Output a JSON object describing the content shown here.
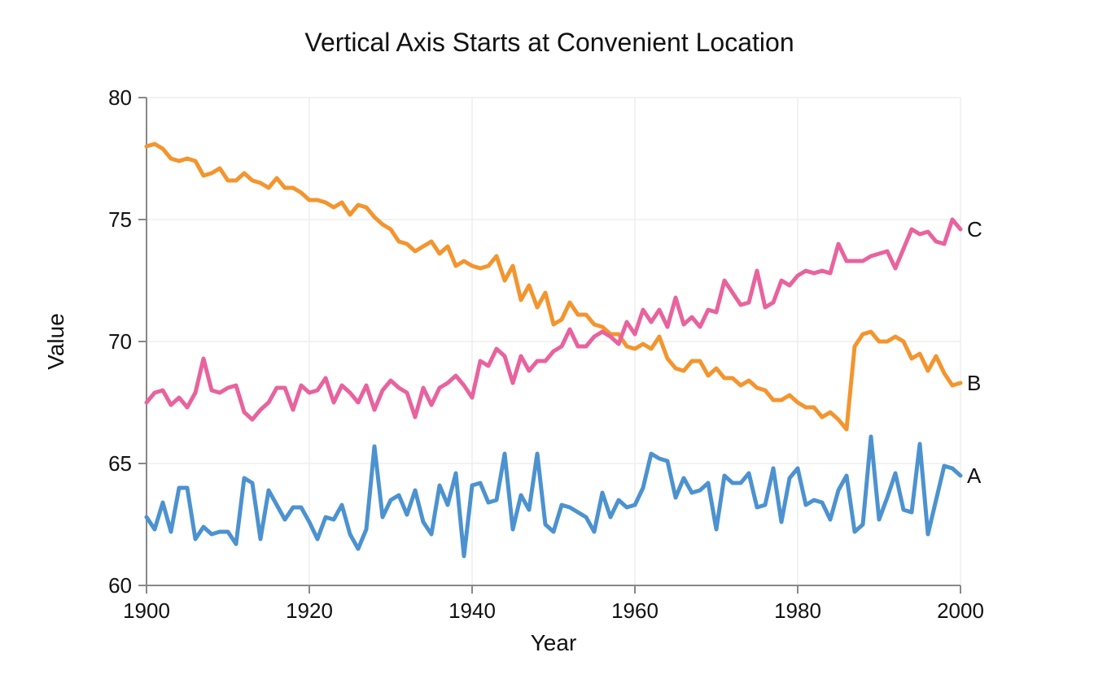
{
  "chart_data": {
    "type": "line",
    "title": "Vertical Axis Starts at Convenient Location",
    "xlabel": "Year",
    "ylabel": "Value",
    "xlim": [
      1900,
      2000
    ],
    "ylim": [
      60,
      80
    ],
    "x_ticks": [
      "1900",
      "1920",
      "1940",
      "1960",
      "1980",
      "2000"
    ],
    "y_ticks": [
      "60",
      "65",
      "70",
      "75",
      "80"
    ],
    "grid": true,
    "x": [
      1900,
      1901,
      1902,
      1903,
      1904,
      1905,
      1906,
      1907,
      1908,
      1909,
      1910,
      1911,
      1912,
      1913,
      1914,
      1915,
      1916,
      1917,
      1918,
      1919,
      1920,
      1921,
      1922,
      1923,
      1924,
      1925,
      1926,
      1927,
      1928,
      1929,
      1930,
      1931,
      1932,
      1933,
      1934,
      1935,
      1936,
      1937,
      1938,
      1939,
      1940,
      1941,
      1942,
      1943,
      1944,
      1945,
      1946,
      1947,
      1948,
      1949,
      1950,
      1951,
      1952,
      1953,
      1954,
      1955,
      1956,
      1957,
      1958,
      1959,
      1960,
      1961,
      1962,
      1963,
      1964,
      1965,
      1966,
      1967,
      1968,
      1969,
      1970,
      1971,
      1972,
      1973,
      1974,
      1975,
      1976,
      1977,
      1978,
      1979,
      1980,
      1981,
      1982,
      1983,
      1984,
      1985,
      1986,
      1987,
      1988,
      1989,
      1990,
      1991,
      1992,
      1993,
      1994,
      1995,
      1996,
      1997,
      1998,
      1999,
      2000
    ],
    "series": [
      {
        "name": "A",
        "color": "#4c92d0",
        "values": [
          62.8,
          62.3,
          63.4,
          62.2,
          64.0,
          64.0,
          61.9,
          62.4,
          62.1,
          62.2,
          62.2,
          61.7,
          64.4,
          64.2,
          61.9,
          63.9,
          63.3,
          62.7,
          63.2,
          63.2,
          62.6,
          61.9,
          62.8,
          62.7,
          63.3,
          62.1,
          61.5,
          62.3,
          65.7,
          62.8,
          63.5,
          63.7,
          62.9,
          63.9,
          62.6,
          62.1,
          64.1,
          63.3,
          64.6,
          61.2,
          64.1,
          64.2,
          63.4,
          63.5,
          65.4,
          62.3,
          63.7,
          63.1,
          65.4,
          62.5,
          62.2,
          63.3,
          63.2,
          63.0,
          62.8,
          62.2,
          63.8,
          62.8,
          63.5,
          63.2,
          63.3,
          64.0,
          65.4,
          65.2,
          65.1,
          63.6,
          64.4,
          63.8,
          63.9,
          64.2,
          62.3,
          64.5,
          64.2,
          64.2,
          64.6,
          63.2,
          63.3,
          64.8,
          62.6,
          64.4,
          64.8,
          63.3,
          63.5,
          63.4,
          62.7,
          63.9,
          64.5,
          62.2,
          62.5,
          66.1,
          62.7,
          63.6,
          64.6,
          63.1,
          63.0,
          65.8,
          62.1,
          63.5,
          64.9,
          64.8,
          64.5
        ]
      },
      {
        "name": "B",
        "color": "#f3952f",
        "values": [
          78.0,
          78.1,
          77.9,
          77.5,
          77.4,
          77.5,
          77.4,
          76.8,
          76.9,
          77.1,
          76.6,
          76.6,
          76.9,
          76.6,
          76.5,
          76.3,
          76.7,
          76.3,
          76.3,
          76.1,
          75.8,
          75.8,
          75.7,
          75.5,
          75.7,
          75.2,
          75.6,
          75.5,
          75.1,
          74.8,
          74.6,
          74.1,
          74.0,
          73.7,
          73.9,
          74.1,
          73.6,
          73.9,
          73.1,
          73.3,
          73.1,
          73.0,
          73.1,
          73.5,
          72.5,
          73.1,
          71.7,
          72.3,
          71.4,
          72.0,
          70.7,
          70.9,
          71.6,
          71.1,
          71.1,
          70.7,
          70.6,
          70.3,
          70.3,
          69.8,
          69.7,
          69.9,
          69.7,
          70.2,
          69.3,
          68.9,
          68.8,
          69.2,
          69.2,
          68.6,
          68.9,
          68.5,
          68.5,
          68.2,
          68.4,
          68.1,
          68.0,
          67.6,
          67.6,
          67.8,
          67.5,
          67.3,
          67.3,
          66.9,
          67.1,
          66.8,
          66.4,
          69.8,
          70.3,
          70.4,
          70.0,
          70.0,
          70.2,
          70.0,
          69.3,
          69.5,
          68.8,
          69.4,
          68.7,
          68.2,
          68.3
        ]
      },
      {
        "name": "C",
        "color": "#e8639e",
        "values": [
          67.5,
          67.9,
          68.0,
          67.4,
          67.7,
          67.3,
          67.9,
          69.3,
          68.0,
          67.9,
          68.1,
          68.2,
          67.1,
          66.8,
          67.2,
          67.5,
          68.1,
          68.1,
          67.2,
          68.2,
          67.9,
          68.0,
          68.5,
          67.5,
          68.2,
          67.9,
          67.5,
          68.2,
          67.2,
          68.0,
          68.4,
          68.1,
          67.9,
          66.9,
          68.1,
          67.4,
          68.1,
          68.3,
          68.6,
          68.2,
          67.7,
          69.2,
          69.0,
          69.7,
          69.4,
          68.3,
          69.4,
          68.8,
          69.2,
          69.2,
          69.6,
          69.8,
          70.5,
          69.8,
          69.8,
          70.2,
          70.4,
          70.2,
          69.9,
          70.8,
          70.3,
          71.3,
          70.8,
          71.3,
          70.6,
          71.8,
          70.7,
          71.0,
          70.6,
          71.3,
          71.2,
          72.5,
          72.0,
          71.5,
          71.6,
          72.9,
          71.4,
          71.6,
          72.5,
          72.3,
          72.7,
          72.9,
          72.8,
          72.9,
          72.8,
          74.0,
          73.3,
          73.3,
          73.3,
          73.5,
          73.6,
          73.7,
          73.0,
          73.8,
          74.6,
          74.4,
          74.5,
          74.1,
          74.0,
          75.0,
          74.6
        ]
      }
    ]
  }
}
